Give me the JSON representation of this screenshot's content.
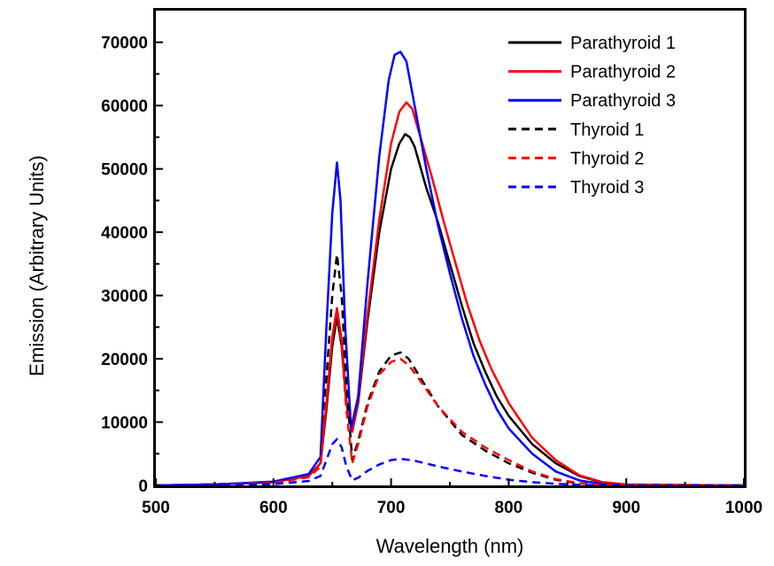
{
  "chart_data": {
    "type": "line",
    "xlabel": "Wavelength (nm)",
    "ylabel": "Emission (Arbitrary Units)",
    "xlim": [
      500,
      1000
    ],
    "ylim": [
      0,
      75000
    ],
    "xticks": [
      500,
      600,
      700,
      800,
      900,
      1000
    ],
    "yticks": [
      0,
      10000,
      20000,
      30000,
      40000,
      50000,
      60000,
      70000
    ],
    "grid": false,
    "legend_position": "top-right",
    "series": [
      {
        "name": "Parathyroid 1",
        "color": "#000000",
        "dash": "solid",
        "points": [
          [
            500,
            0
          ],
          [
            550,
            150
          ],
          [
            600,
            500
          ],
          [
            630,
            1500
          ],
          [
            640,
            3500
          ],
          [
            645,
            12000
          ],
          [
            650,
            22000
          ],
          [
            654,
            26500
          ],
          [
            658,
            22000
          ],
          [
            662,
            13000
          ],
          [
            667,
            8500
          ],
          [
            672,
            13000
          ],
          [
            680,
            26000
          ],
          [
            690,
            40000
          ],
          [
            700,
            50000
          ],
          [
            707,
            54000
          ],
          [
            712,
            55500
          ],
          [
            716,
            55000
          ],
          [
            720,
            53500
          ],
          [
            730,
            47000
          ],
          [
            740,
            41500
          ],
          [
            750,
            35000
          ],
          [
            760,
            28500
          ],
          [
            770,
            22500
          ],
          [
            780,
            18000
          ],
          [
            790,
            14000
          ],
          [
            800,
            11000
          ],
          [
            820,
            6500
          ],
          [
            840,
            3500
          ],
          [
            860,
            1500
          ],
          [
            880,
            400
          ],
          [
            900,
            100
          ],
          [
            1000,
            0
          ]
        ]
      },
      {
        "name": "Parathyroid 2",
        "color": "#ff0000",
        "dash": "solid",
        "points": [
          [
            500,
            0
          ],
          [
            550,
            150
          ],
          [
            600,
            500
          ],
          [
            630,
            1500
          ],
          [
            640,
            3500
          ],
          [
            645,
            13000
          ],
          [
            650,
            23500
          ],
          [
            654,
            28000
          ],
          [
            658,
            23000
          ],
          [
            662,
            13500
          ],
          [
            667,
            8500
          ],
          [
            672,
            13500
          ],
          [
            680,
            27000
          ],
          [
            690,
            42000
          ],
          [
            700,
            54000
          ],
          [
            707,
            59000
          ],
          [
            713,
            60500
          ],
          [
            718,
            59500
          ],
          [
            725,
            55000
          ],
          [
            735,
            48500
          ],
          [
            745,
            41500
          ],
          [
            755,
            35000
          ],
          [
            765,
            28500
          ],
          [
            775,
            23000
          ],
          [
            785,
            18500
          ],
          [
            800,
            13000
          ],
          [
            820,
            7500
          ],
          [
            840,
            4000
          ],
          [
            860,
            1600
          ],
          [
            880,
            500
          ],
          [
            900,
            150
          ],
          [
            1000,
            0
          ]
        ]
      },
      {
        "name": "Parathyroid 3",
        "color": "#0000ff",
        "dash": "solid",
        "points": [
          [
            500,
            0
          ],
          [
            550,
            150
          ],
          [
            600,
            600
          ],
          [
            630,
            1800
          ],
          [
            640,
            4500
          ],
          [
            645,
            25000
          ],
          [
            650,
            43000
          ],
          [
            654,
            51000
          ],
          [
            657,
            45000
          ],
          [
            661,
            25000
          ],
          [
            666,
            9000
          ],
          [
            672,
            14000
          ],
          [
            680,
            32000
          ],
          [
            690,
            52000
          ],
          [
            698,
            64000
          ],
          [
            703,
            68000
          ],
          [
            708,
            68500
          ],
          [
            713,
            67000
          ],
          [
            720,
            60000
          ],
          [
            730,
            50000
          ],
          [
            740,
            41000
          ],
          [
            750,
            33500
          ],
          [
            760,
            26500
          ],
          [
            770,
            20500
          ],
          [
            780,
            16000
          ],
          [
            790,
            12000
          ],
          [
            800,
            9000
          ],
          [
            820,
            5000
          ],
          [
            840,
            2200
          ],
          [
            860,
            800
          ],
          [
            880,
            200
          ],
          [
            900,
            50
          ],
          [
            1000,
            0
          ]
        ]
      },
      {
        "name": "Thyroid 1",
        "color": "#000000",
        "dash": "dashed",
        "points": [
          [
            500,
            0
          ],
          [
            550,
            100
          ],
          [
            600,
            400
          ],
          [
            630,
            1300
          ],
          [
            640,
            3000
          ],
          [
            645,
            17000
          ],
          [
            650,
            30000
          ],
          [
            654,
            36500
          ],
          [
            658,
            30000
          ],
          [
            662,
            16000
          ],
          [
            667,
            4000
          ],
          [
            672,
            7000
          ],
          [
            680,
            13000
          ],
          [
            690,
            18000
          ],
          [
            700,
            20500
          ],
          [
            708,
            21000
          ],
          [
            715,
            20000
          ],
          [
            725,
            17000
          ],
          [
            740,
            12500
          ],
          [
            760,
            8000
          ],
          [
            780,
            5500
          ],
          [
            800,
            3500
          ],
          [
            820,
            2000
          ],
          [
            840,
            900
          ],
          [
            860,
            300
          ],
          [
            880,
            80
          ],
          [
            1000,
            0
          ]
        ]
      },
      {
        "name": "Thyroid 2",
        "color": "#ff0000",
        "dash": "dashed",
        "points": [
          [
            500,
            0
          ],
          [
            550,
            100
          ],
          [
            600,
            400
          ],
          [
            630,
            1300
          ],
          [
            640,
            3000
          ],
          [
            645,
            14000
          ],
          [
            650,
            23000
          ],
          [
            654,
            27500
          ],
          [
            658,
            22000
          ],
          [
            662,
            12000
          ],
          [
            667,
            3500
          ],
          [
            672,
            6500
          ],
          [
            680,
            12500
          ],
          [
            690,
            17500
          ],
          [
            700,
            19500
          ],
          [
            708,
            20000
          ],
          [
            715,
            19000
          ],
          [
            725,
            16500
          ],
          [
            740,
            12500
          ],
          [
            760,
            8500
          ],
          [
            780,
            6000
          ],
          [
            800,
            4000
          ],
          [
            820,
            2200
          ],
          [
            840,
            1000
          ],
          [
            860,
            350
          ],
          [
            880,
            100
          ],
          [
            1000,
            0
          ]
        ]
      },
      {
        "name": "Thyroid 3",
        "color": "#0000ff",
        "dash": "dashed",
        "points": [
          [
            500,
            0
          ],
          [
            550,
            50
          ],
          [
            600,
            200
          ],
          [
            630,
            700
          ],
          [
            640,
            1500
          ],
          [
            645,
            4000
          ],
          [
            650,
            6500
          ],
          [
            654,
            7300
          ],
          [
            658,
            6000
          ],
          [
            662,
            3000
          ],
          [
            667,
            800
          ],
          [
            672,
            1200
          ],
          [
            680,
            2300
          ],
          [
            690,
            3300
          ],
          [
            700,
            4000
          ],
          [
            708,
            4200
          ],
          [
            720,
            3900
          ],
          [
            740,
            3000
          ],
          [
            760,
            2200
          ],
          [
            780,
            1500
          ],
          [
            800,
            900
          ],
          [
            820,
            500
          ],
          [
            840,
            250
          ],
          [
            860,
            100
          ],
          [
            880,
            20
          ],
          [
            1000,
            0
          ]
        ]
      }
    ]
  }
}
